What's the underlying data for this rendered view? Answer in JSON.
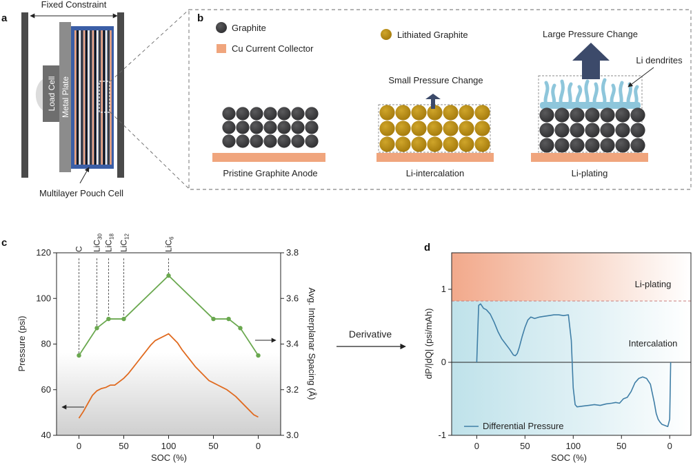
{
  "panel_labels": {
    "a": "a",
    "b": "b",
    "c": "c",
    "d": "d"
  },
  "panel_a": {
    "fixed_constraint": "Fixed Constraint",
    "load_cell": "Load Cell",
    "metal_plate": "Metal Plate",
    "pouch_cell": "Multilayer Pouch Cell"
  },
  "panel_b": {
    "legend_graphite": "Graphite",
    "legend_cu": "Cu Current Collector",
    "legend_lithiated": "Lithiated Graphite",
    "small_pressure": "Small Pressure Change",
    "large_pressure": "Large Pressure Change",
    "li_dendrites": "Li dendrites",
    "caption_pristine": "Pristine Graphite Anode",
    "caption_intercalation": "Li-intercalation",
    "caption_plating": "Li-plating"
  },
  "derivative_label": "Derivative",
  "colors": {
    "graphite": "#3f3f41",
    "lithiated": "#b78d12",
    "cu": "#f0a57d",
    "dendrite": "#8ec6db",
    "arrow": "#3c4a6a",
    "green": "#6aa84f",
    "orange": "#e06a1f",
    "blue": "#3f7ea6"
  },
  "chart_data": [
    {
      "type": "line",
      "panel": "c",
      "xlabel": "SOC (%)",
      "ylabel": "Pressure (psi)",
      "y2label": "Avg. Interplanar Spacing (Å)",
      "x_tick_labels": [
        "0",
        "50",
        "100",
        "50",
        "0"
      ],
      "ylim": [
        40,
        120
      ],
      "y_ticks": [
        "40",
        "60",
        "80",
        "100",
        "120"
      ],
      "y2lim": [
        3.0,
        3.8
      ],
      "y2_ticks": [
        "3.0",
        "3.2",
        "3.4",
        "3.6",
        "3.8"
      ],
      "stage_labels": [
        {
          "base": "C",
          "sub": "",
          "x": 0
        },
        {
          "base": "LiC",
          "sub": "30",
          "x": 20
        },
        {
          "base": "LiC",
          "sub": "18",
          "x": 33
        },
        {
          "base": "LiC",
          "sub": "12",
          "x": 50
        },
        {
          "base": "LiC",
          "sub": "6",
          "x": 100
        }
      ],
      "series": [
        {
          "name": "Avg. Interplanar Spacing",
          "axis": "right",
          "x": [
            0,
            20,
            33,
            50,
            100,
            150,
            167,
            180,
            200
          ],
          "values": [
            3.35,
            3.47,
            3.51,
            3.51,
            3.7,
            3.51,
            3.51,
            3.47,
            3.35
          ]
        },
        {
          "name": "Pressure",
          "axis": "left",
          "x": [
            0,
            5,
            10,
            15,
            20,
            25,
            30,
            35,
            40,
            45,
            50,
            55,
            60,
            65,
            70,
            75,
            80,
            85,
            90,
            95,
            100,
            105,
            110,
            115,
            120,
            125,
            130,
            135,
            140,
            145,
            150,
            155,
            160,
            165,
            170,
            175,
            180,
            185,
            190,
            195,
            200
          ],
          "values": [
            47.5,
            50.5,
            54,
            57.5,
            59.5,
            60.5,
            61,
            62,
            62,
            63.5,
            65,
            67,
            69.5,
            72,
            74.5,
            77,
            79.5,
            81.5,
            82.5,
            83.5,
            84.5,
            82.5,
            80.5,
            77.5,
            75,
            72.5,
            70,
            68,
            66,
            64,
            63,
            62,
            61,
            60,
            58.5,
            57,
            55,
            53,
            51,
            49,
            48
          ]
        }
      ]
    },
    {
      "type": "line",
      "panel": "d",
      "xlabel": "SOC (%)",
      "ylabel": "dP/|dQ| (psi/mAh)",
      "x_tick_labels": [
        "0",
        "50",
        "100",
        "50",
        "0"
      ],
      "ylim": [
        -1.0,
        1.5
      ],
      "y_ticks": [
        "-1",
        "0",
        "1"
      ],
      "threshold": 0.85,
      "region_labels": {
        "top": "Li-plating",
        "bottom": "Intercalation"
      },
      "legend": "Differential Pressure",
      "series": [
        {
          "name": "Differential Pressure",
          "x": [
            0,
            1,
            2,
            4,
            7,
            10,
            14,
            18,
            22,
            26,
            30,
            34,
            38,
            40,
            42,
            44,
            47,
            50,
            53,
            56,
            60,
            65,
            70,
            75,
            80,
            85,
            90,
            95,
            98,
            100,
            102,
            104,
            110,
            116,
            122,
            128,
            134,
            140,
            144,
            148,
            152,
            156,
            160,
            164,
            168,
            172,
            176,
            180,
            184,
            186,
            188,
            190,
            192,
            194,
            196,
            198,
            200,
            201
          ],
          "values": [
            0,
            0.4,
            0.78,
            0.8,
            0.74,
            0.72,
            0.66,
            0.55,
            0.42,
            0.32,
            0.25,
            0.18,
            0.1,
            0.09,
            0.12,
            0.2,
            0.35,
            0.48,
            0.58,
            0.62,
            0.6,
            0.62,
            0.63,
            0.64,
            0.65,
            0.65,
            0.64,
            0.65,
            0.3,
            -0.35,
            -0.58,
            -0.61,
            -0.6,
            -0.59,
            -0.58,
            -0.59,
            -0.57,
            -0.56,
            -0.55,
            -0.56,
            -0.5,
            -0.48,
            -0.4,
            -0.28,
            -0.22,
            -0.2,
            -0.22,
            -0.3,
            -0.55,
            -0.7,
            -0.78,
            -0.82,
            -0.85,
            -0.86,
            -0.87,
            -0.88,
            -0.78,
            0
          ]
        }
      ]
    }
  ]
}
